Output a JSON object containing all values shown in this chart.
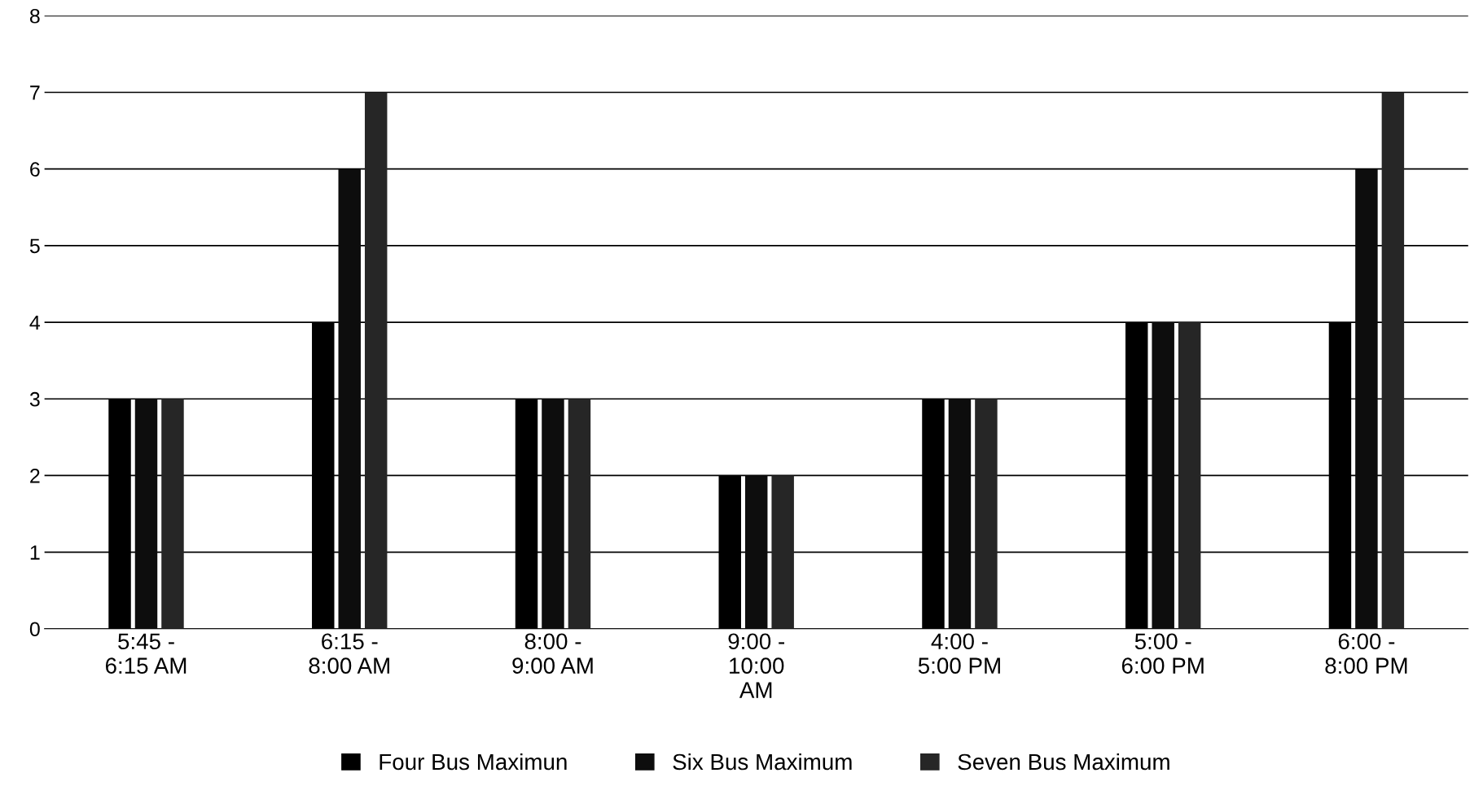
{
  "chart_data": {
    "type": "bar",
    "categories": [
      "5:45 -\n6:15 AM",
      "6:15 -\n8:00 AM",
      "8:00 -\n9:00 AM",
      "9:00 -\n10:00\nAM",
      "4:00 -\n5:00 PM",
      "5:00 -\n6:00 PM",
      "6:00 -\n8:00 PM"
    ],
    "series": [
      {
        "name": "Four Bus Maximun",
        "color": "#000000",
        "values": [
          3,
          4,
          3,
          2,
          3,
          4,
          4
        ]
      },
      {
        "name": "Six Bus Maximum",
        "color": "#0d0d0d",
        "values": [
          3,
          6,
          3,
          2,
          3,
          4,
          6
        ]
      },
      {
        "name": "Seven Bus Maximum",
        "color": "#262626",
        "values": [
          3,
          7,
          3,
          2,
          3,
          4,
          7
        ]
      }
    ],
    "ylim": [
      0,
      8
    ],
    "yticks": [
      0,
      1,
      2,
      3,
      4,
      5,
      6,
      7,
      8
    ],
    "grid": "y",
    "legend": "bottom"
  }
}
